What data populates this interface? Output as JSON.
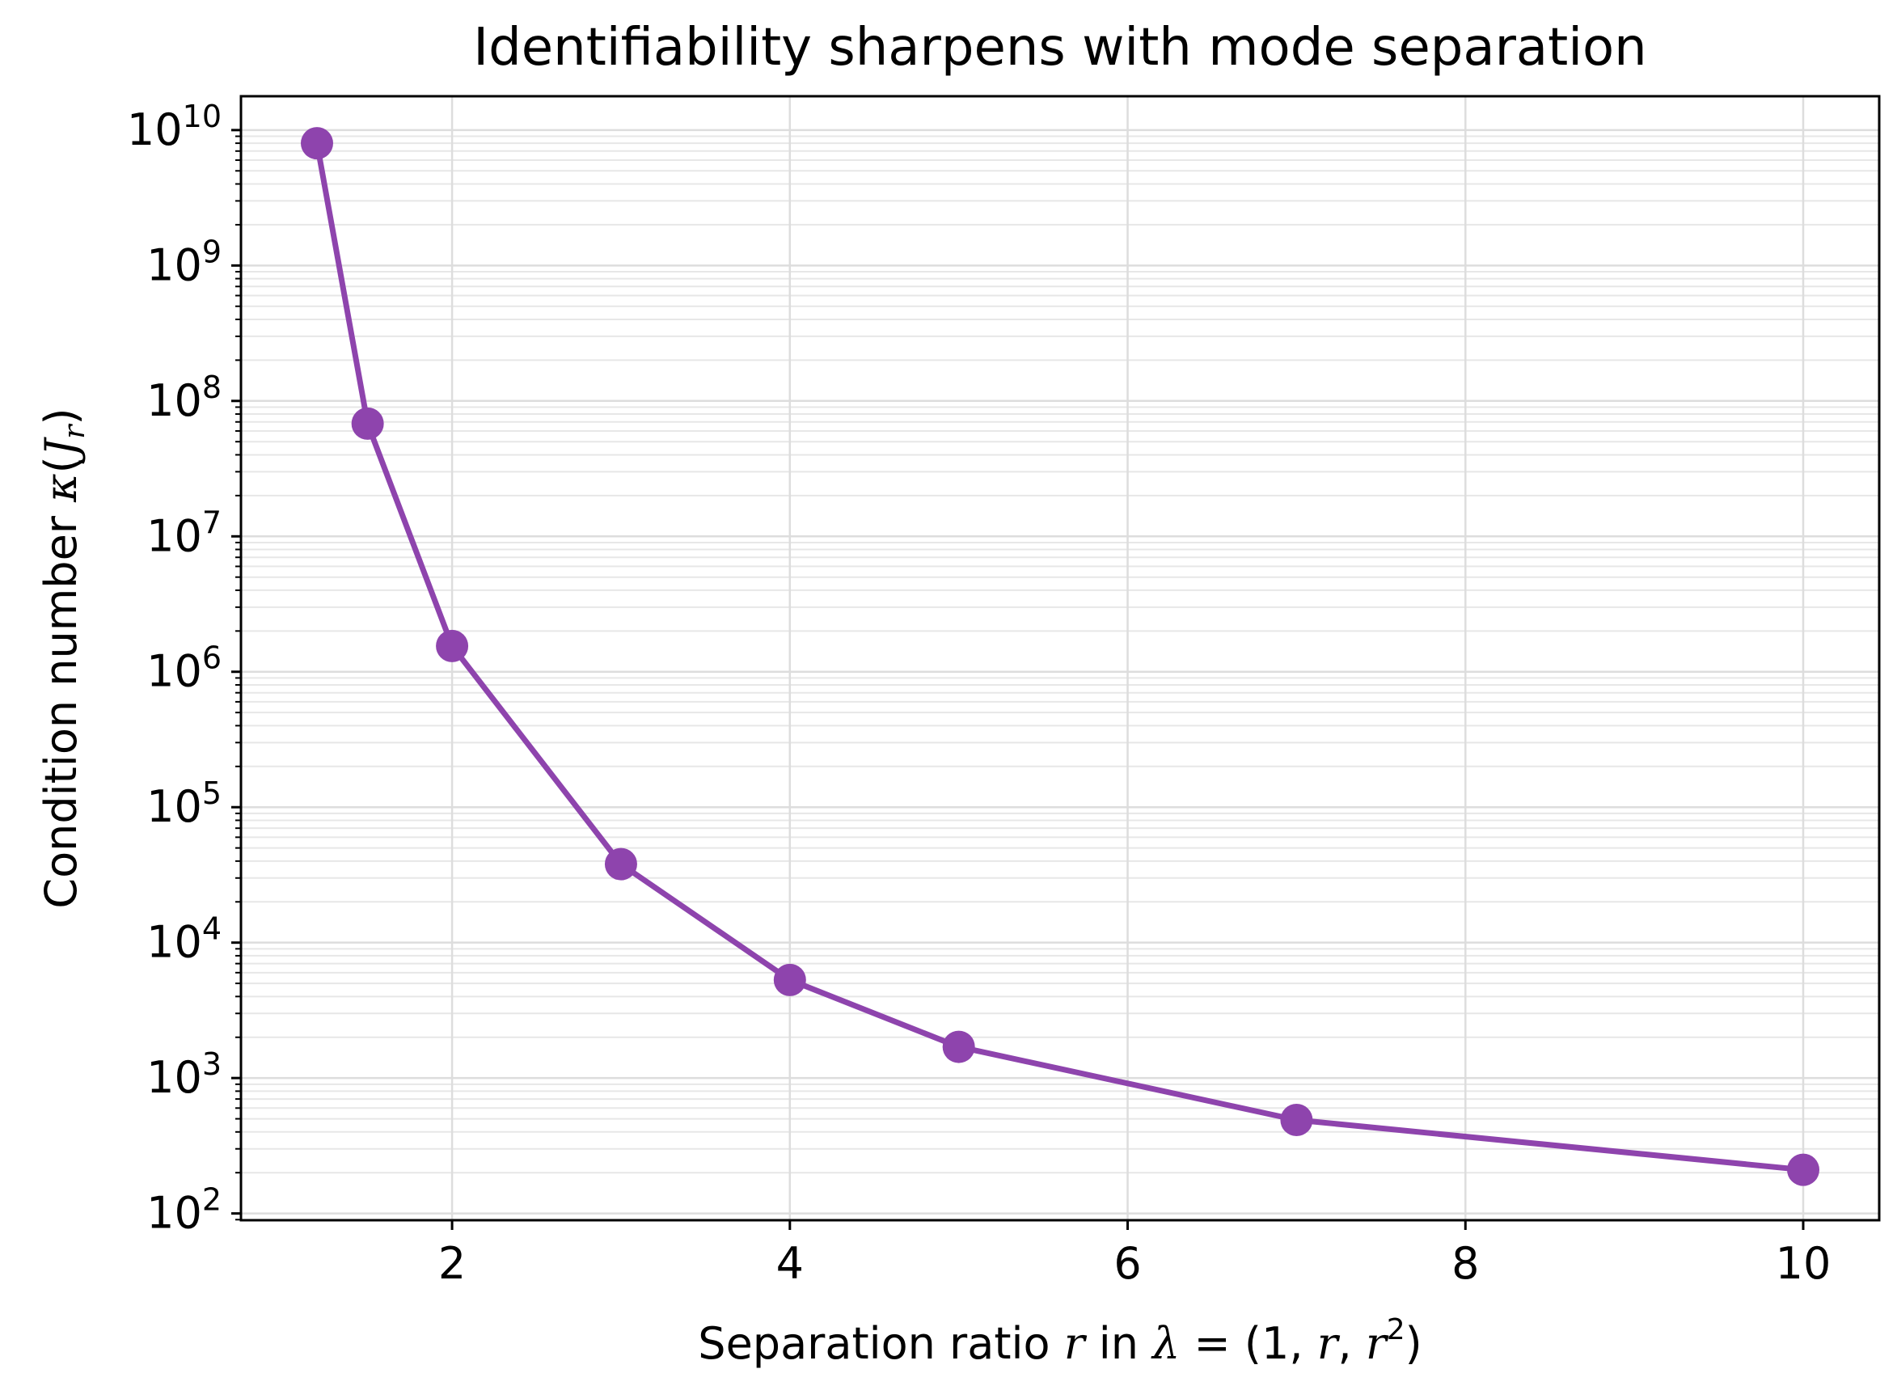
{
  "chart_data": {
    "type": "line",
    "title": "Identifiability sharpens with mode separation",
    "xlabel": {
      "prefix": "Separation ratio ",
      "var_r": "r",
      "mid": " in ",
      "lambda": "λ",
      "eq": " = (1, ",
      "r2": "r",
      "comma": ", ",
      "r3": "r",
      "sup": "2",
      "close": ")"
    },
    "ylabel": {
      "prefix": "Condition number ",
      "kappa": "κ",
      "open": "(",
      "J": "J",
      "sub": "r",
      "close": ")"
    },
    "xlim": [
      0.75,
      10.45
    ],
    "ylim_log10": [
      1.95,
      10.25
    ],
    "y_scale": "log",
    "grid": true,
    "x_ticks": [
      2,
      4,
      6,
      8,
      10
    ],
    "x_tick_labels": [
      "2",
      "4",
      "6",
      "8",
      "10"
    ],
    "y_ticks": [
      {
        "exp": 2,
        "base": "10",
        "sup": "2"
      },
      {
        "exp": 3,
        "base": "10",
        "sup": "3"
      },
      {
        "exp": 4,
        "base": "10",
        "sup": "4"
      },
      {
        "exp": 5,
        "base": "10",
        "sup": "5"
      },
      {
        "exp": 6,
        "base": "10",
        "sup": "6"
      },
      {
        "exp": 7,
        "base": "10",
        "sup": "7"
      },
      {
        "exp": 8,
        "base": "10",
        "sup": "8"
      },
      {
        "exp": 9,
        "base": "10",
        "sup": "9"
      },
      {
        "exp": 10,
        "base": "10",
        "sup": "10"
      }
    ],
    "series": [
      {
        "color": "#8e44ad",
        "points": [
          {
            "x": 1.2,
            "y": 8000000000
          },
          {
            "x": 1.5,
            "y": 68000000
          },
          {
            "x": 2,
            "y": 1550000
          },
          {
            "x": 3,
            "y": 38000
          },
          {
            "x": 4,
            "y": 5300
          },
          {
            "x": 5,
            "y": 1700
          },
          {
            "x": 7,
            "y": 490
          },
          {
            "x": 10,
            "y": 210
          }
        ]
      }
    ]
  }
}
